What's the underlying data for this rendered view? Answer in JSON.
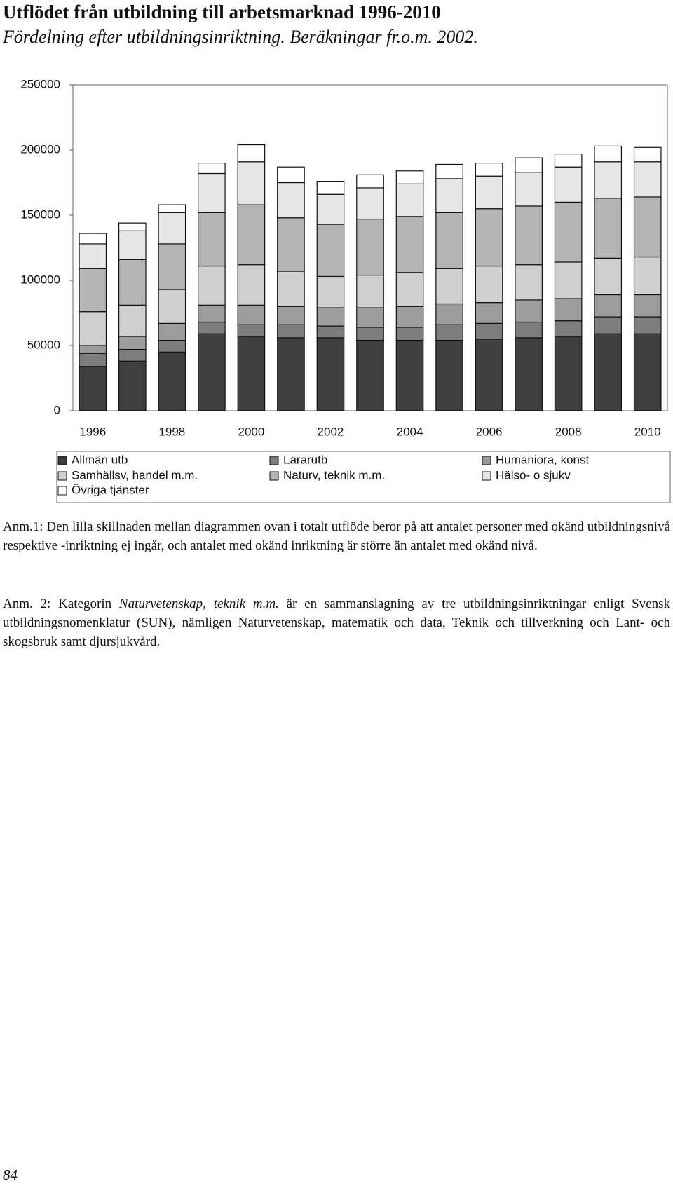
{
  "chart_data": {
    "type": "stacked-bar",
    "title": "Utflödet från utbildning till arbetsmarknad 1996-2010",
    "subtitle": "Fördelning efter utbildningsinriktning. Beräkningar fr.o.m. 2002.",
    "categories": [
      "1996",
      null,
      "1998",
      null,
      "2000",
      null,
      "2002",
      null,
      "2004",
      null,
      "2006",
      null,
      "2008",
      null,
      "2010"
    ],
    "series": [
      {
        "name": "Allmän utb",
        "color": "#3f3f3f",
        "values": [
          34000,
          38000,
          45000,
          59000,
          57000,
          56000,
          56000,
          54000,
          54000,
          54000,
          55000,
          56000,
          57000,
          59000,
          59000
        ]
      },
      {
        "name": "Lärarutb",
        "color": "#7d7d7d",
        "values": [
          10000,
          9000,
          9000,
          9000,
          9000,
          10000,
          9000,
          10000,
          10000,
          12000,
          12000,
          12000,
          12000,
          13000,
          13000
        ]
      },
      {
        "name": "Humaniora, konst",
        "color": "#9c9c9c",
        "values": [
          6000,
          10000,
          13000,
          13000,
          15000,
          14000,
          14000,
          15000,
          16000,
          16000,
          16000,
          17000,
          17000,
          17000,
          17000
        ]
      },
      {
        "name": "Samhällsv, handel m.m.",
        "color": "#cfcfcf",
        "values": [
          26000,
          24000,
          26000,
          30000,
          31000,
          27000,
          24000,
          25000,
          26000,
          27000,
          28000,
          27000,
          28000,
          28000,
          29000
        ]
      },
      {
        "name": "Naturv, teknik m.m.",
        "color": "#b4b4b4",
        "values": [
          33000,
          35000,
          35000,
          41000,
          46000,
          41000,
          40000,
          43000,
          43000,
          43000,
          44000,
          45000,
          46000,
          46000,
          46000
        ]
      },
      {
        "name": "Hälso- o sjukv",
        "color": "#e6e6e6",
        "values": [
          19000,
          22000,
          24000,
          30000,
          33000,
          27000,
          23000,
          24000,
          25000,
          26000,
          25000,
          26000,
          27000,
          28000,
          27000
        ]
      },
      {
        "name": "Övriga tjänster",
        "color": "#ffffff",
        "values": [
          8000,
          6000,
          6000,
          8000,
          13000,
          12000,
          10000,
          10000,
          10000,
          11000,
          10000,
          11000,
          10000,
          12000,
          11000
        ]
      }
    ],
    "ylim": [
      0,
      250000
    ],
    "yticks": [
      0,
      50000,
      100000,
      150000,
      200000,
      250000
    ],
    "grid": false
  },
  "notes": {
    "note1": "Anm.1: Den lilla skillnaden mellan diagrammen ovan i totalt utflöde beror på att antalet personer med okänd utbildningsnivå respektive -inriktning ej ingår, och antalet med okänd inriktning är större än antalet med okänd nivå.",
    "note2": [
      "Anm. 2: Kategorin ",
      "Naturvetenskap, teknik m.m.",
      " är en sammanslagning av tre utbildningsinriktningar enligt Svensk utbildningsnomenklatur (SUN), nämligen Naturvetenskap, matematik och data, Teknik och tillverkning och Lant- och skogsbruk samt djursjukvård."
    ]
  },
  "page_number": "84"
}
